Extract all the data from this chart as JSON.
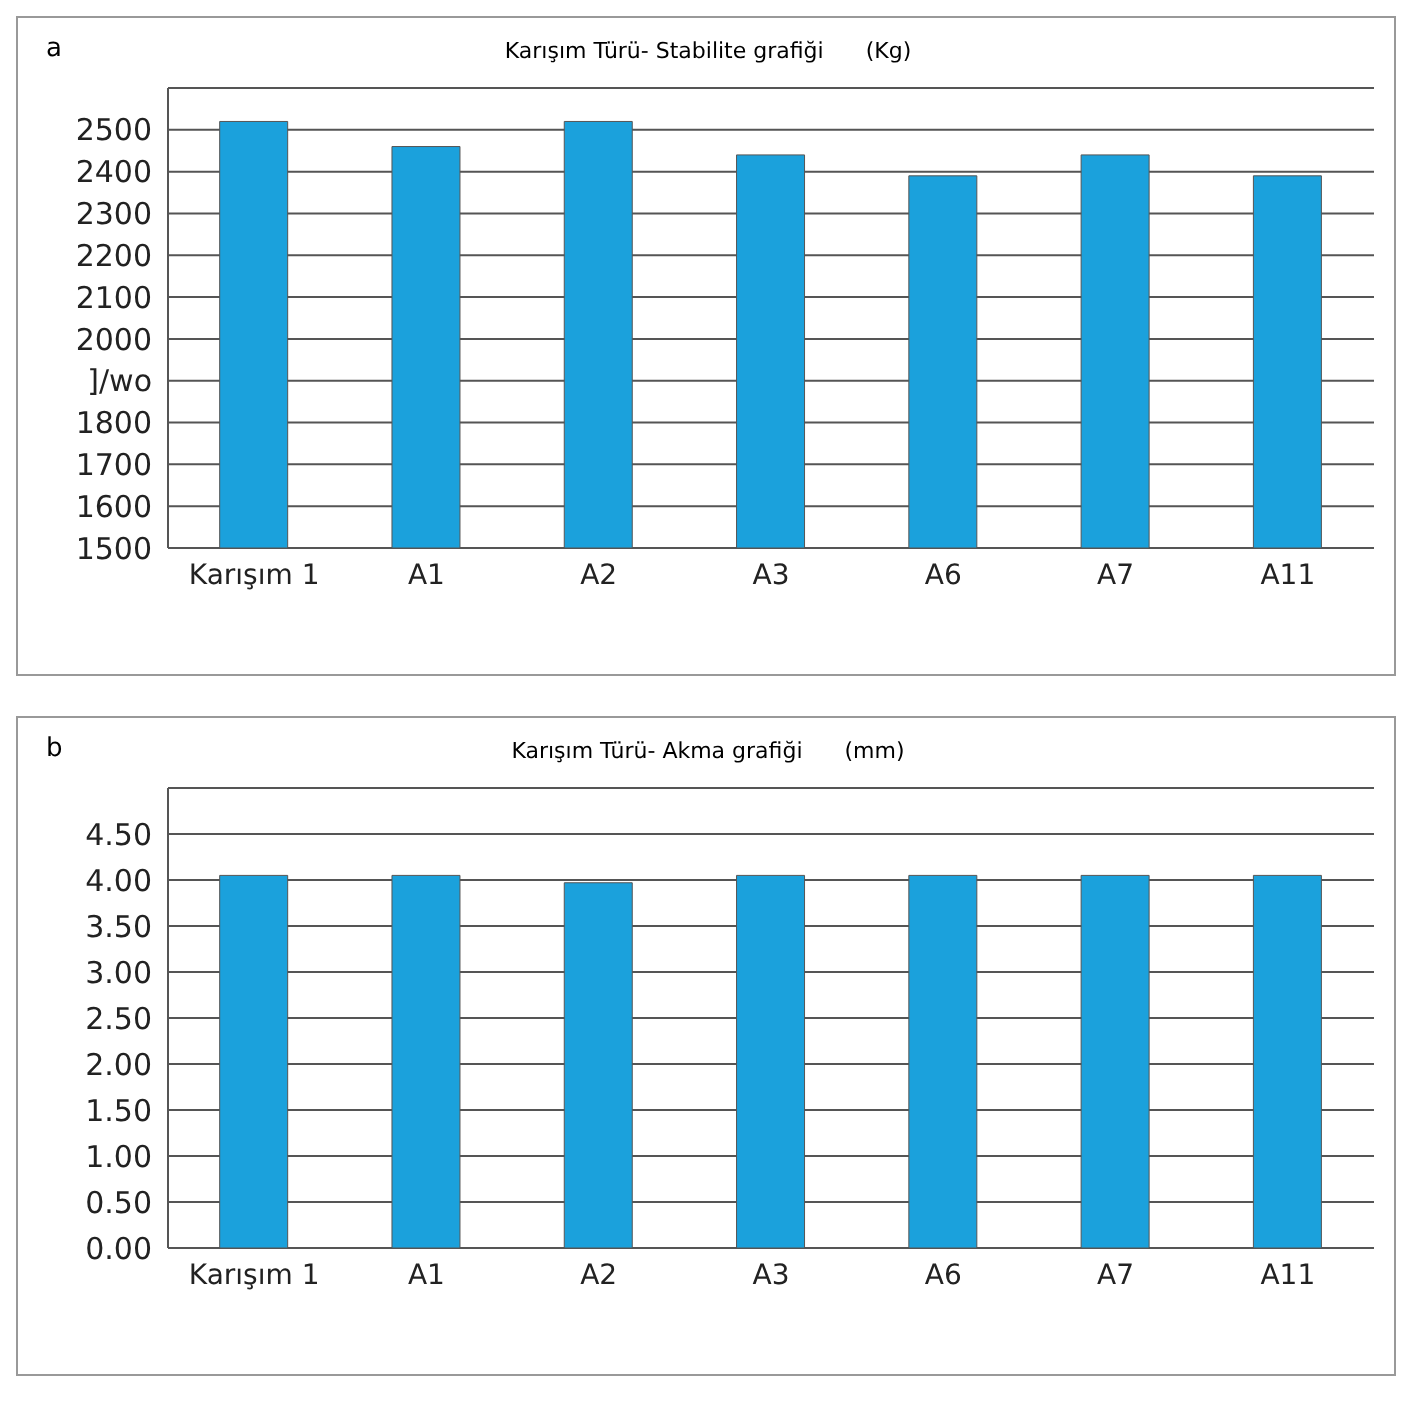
{
  "chart_data": [
    {
      "type": "bar",
      "title": "Karışım Türü- Stabilite grafiği      (Kg)",
      "annotations": [
        "a"
      ],
      "categories": [
        "Karışım 1",
        "A1",
        "A2",
        "A3",
        "A6",
        "A7",
        "A11"
      ],
      "values": [
        2520,
        2460,
        2520,
        2440,
        2390,
        2440,
        2390
      ],
      "color": "#1ba1dc",
      "ylim": [
        1500,
        2600
      ],
      "yticks": [
        1500,
        1600,
        1700,
        1800,
        {
          "value": 1900,
          "label": "]/wo"
        },
        2000,
        2100,
        2200,
        2300,
        2400,
        2500,
        {
          "value": 2600,
          "label": null
        }
      ],
      "grid": "y"
    },
    {
      "type": "bar",
      "title": "Karışım Türü- Akma grafiği      (mm)",
      "annotations": [
        "b"
      ],
      "categories": [
        "Karışım 1",
        "A1",
        "A2",
        "A3",
        "A6",
        "A7",
        "A11"
      ],
      "values": [
        4.05,
        4.05,
        3.97,
        4.05,
        4.05,
        4.05,
        4.05
      ],
      "color": "#1ba1dc",
      "ylim": [
        0,
        5
      ],
      "yticks": [
        {
          "value": 0,
          "label": "0.00"
        },
        {
          "value": 0.5,
          "label": "0.50"
        },
        {
          "value": 1,
          "label": "1.00"
        },
        {
          "value": 1.5,
          "label": "1.50"
        },
        {
          "value": 2,
          "label": "2.00"
        },
        {
          "value": 2.5,
          "label": "2.50"
        },
        {
          "value": 3,
          "label": "3.00"
        },
        {
          "value": 3.5,
          "label": "3.50"
        },
        {
          "value": 4,
          "label": "4.00"
        },
        {
          "value": 4.5,
          "label": "4.50"
        },
        {
          "value": 5,
          "label": null
        }
      ],
      "grid": "y"
    }
  ]
}
